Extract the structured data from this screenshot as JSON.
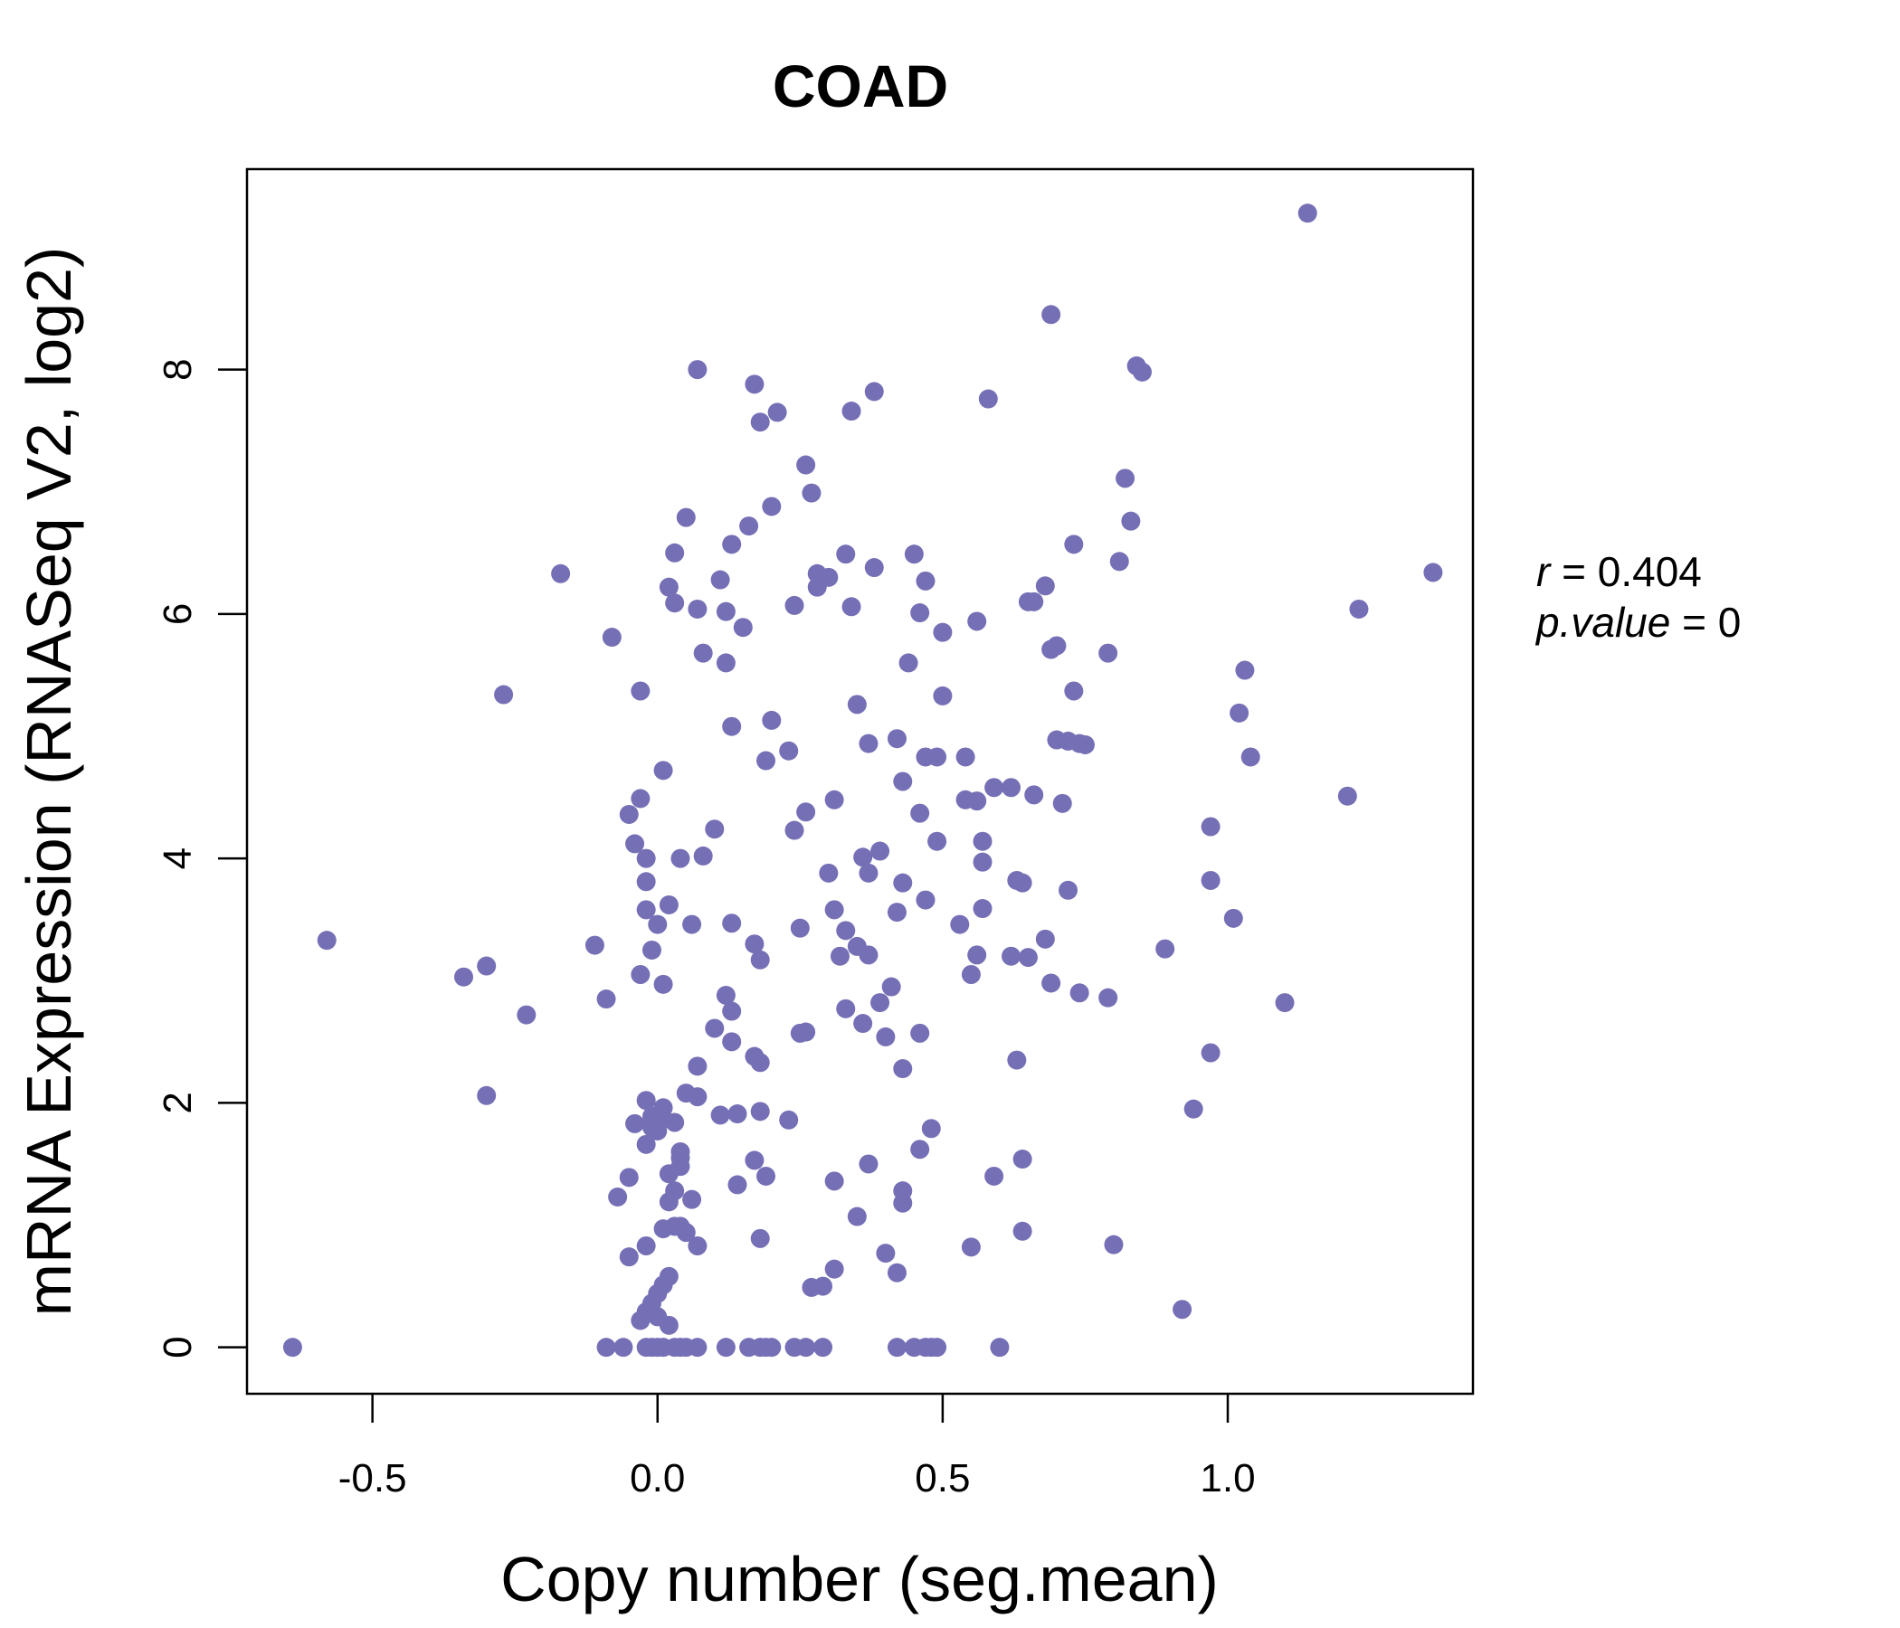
{
  "colors": {
    "point": "#7570b6",
    "axis": "#000000",
    "background": "#ffffff"
  },
  "chart_data": {
    "type": "scatter",
    "title": "COAD",
    "xlabel": "Copy number (seg.mean)",
    "ylabel": "mRNA Expression (RNASeq V2, log2)",
    "xlim": [
      -0.72,
      1.43
    ],
    "ylim": [
      -0.38,
      9.64
    ],
    "xticks": [
      -0.5,
      0.0,
      0.5,
      1.0
    ],
    "xtick_labels": [
      "-0.5",
      "0.0",
      "0.5",
      "1.0"
    ],
    "yticks": [
      0,
      2,
      4,
      6,
      8
    ],
    "ytick_labels": [
      "0",
      "2",
      "4",
      "6",
      "8"
    ],
    "grid": false,
    "stats": {
      "r_label": "r",
      "r_value": "0.404",
      "p_label": "p.value",
      "p_value": "0"
    },
    "points": [
      [
        -0.64,
        0.0
      ],
      [
        -0.58,
        3.33
      ],
      [
        -0.34,
        3.03
      ],
      [
        -0.3,
        3.12
      ],
      [
        -0.3,
        2.06
      ],
      [
        -0.27,
        5.34
      ],
      [
        -0.23,
        2.72
      ],
      [
        -0.17,
        6.33
      ],
      [
        -0.11,
        3.29
      ],
      [
        -0.09,
        2.85
      ],
      [
        -0.09,
        0.0
      ],
      [
        -0.08,
        5.81
      ],
      [
        -0.07,
        1.23
      ],
      [
        -0.06,
        0.0
      ],
      [
        -0.05,
        1.39
      ],
      [
        -0.05,
        0.74
      ],
      [
        -0.05,
        4.36
      ],
      [
        -0.04,
        4.12
      ],
      [
        -0.04,
        1.83
      ],
      [
        -0.03,
        0.22
      ],
      [
        -0.03,
        4.49
      ],
      [
        -0.03,
        3.05
      ],
      [
        -0.03,
        5.37
      ],
      [
        -0.02,
        0.0
      ],
      [
        -0.02,
        4.0
      ],
      [
        -0.02,
        1.66
      ],
      [
        -0.02,
        3.81
      ],
      [
        -0.02,
        3.58
      ],
      [
        -0.02,
        2.02
      ],
      [
        -0.02,
        0.83
      ],
      [
        -0.02,
        0.29
      ],
      [
        -0.01,
        1.89
      ],
      [
        -0.01,
        0.36
      ],
      [
        -0.01,
        0.0
      ],
      [
        -0.01,
        3.25
      ],
      [
        -0.01,
        1.8
      ],
      [
        0.0,
        1.77
      ],
      [
        0.0,
        3.46
      ],
      [
        0.0,
        0.44
      ],
      [
        0.0,
        0.25
      ],
      [
        0.0,
        0.0
      ],
      [
        0.01,
        1.96
      ],
      [
        0.01,
        4.72
      ],
      [
        0.01,
        0.51
      ],
      [
        0.01,
        2.97
      ],
      [
        0.01,
        0.97
      ],
      [
        0.01,
        1.87
      ],
      [
        0.01,
        0.0
      ],
      [
        0.02,
        3.62
      ],
      [
        0.02,
        6.22
      ],
      [
        0.02,
        1.19
      ],
      [
        0.02,
        0.18
      ],
      [
        0.02,
        1.42
      ],
      [
        0.02,
        0.58
      ],
      [
        0.03,
        1.84
      ],
      [
        0.03,
        0.0
      ],
      [
        0.03,
        6.5
      ],
      [
        0.03,
        6.09
      ],
      [
        0.03,
        0.99
      ],
      [
        0.03,
        1.28
      ],
      [
        0.04,
        1.6
      ],
      [
        0.04,
        4.0
      ],
      [
        0.04,
        1.48
      ],
      [
        0.04,
        0.0
      ],
      [
        0.04,
        0.99
      ],
      [
        0.04,
        1.55
      ],
      [
        0.05,
        0.0
      ],
      [
        0.05,
        6.79
      ],
      [
        0.05,
        2.08
      ],
      [
        0.05,
        0.94
      ],
      [
        0.06,
        1.21
      ],
      [
        0.06,
        3.46
      ],
      [
        0.07,
        8.0
      ],
      [
        0.07,
        0.83
      ],
      [
        0.07,
        2.3
      ],
      [
        0.07,
        6.04
      ],
      [
        0.07,
        0.0
      ],
      [
        0.07,
        2.05
      ],
      [
        0.08,
        5.68
      ],
      [
        0.08,
        4.02
      ],
      [
        0.1,
        2.61
      ],
      [
        0.1,
        4.24
      ],
      [
        0.11,
        6.28
      ],
      [
        0.11,
        1.9
      ],
      [
        0.12,
        0.0
      ],
      [
        0.12,
        5.6
      ],
      [
        0.12,
        6.02
      ],
      [
        0.12,
        2.88
      ],
      [
        0.13,
        2.75
      ],
      [
        0.13,
        6.57
      ],
      [
        0.13,
        5.08
      ],
      [
        0.13,
        3.47
      ],
      [
        0.13,
        2.5
      ],
      [
        0.14,
        1.33
      ],
      [
        0.14,
        1.91
      ],
      [
        0.15,
        5.89
      ],
      [
        0.16,
        6.72
      ],
      [
        0.16,
        0.0
      ],
      [
        0.17,
        7.88
      ],
      [
        0.17,
        1.53
      ],
      [
        0.17,
        3.3
      ],
      [
        0.17,
        2.38
      ],
      [
        0.18,
        7.57
      ],
      [
        0.18,
        3.17
      ],
      [
        0.18,
        0.89
      ],
      [
        0.18,
        1.93
      ],
      [
        0.18,
        0.0
      ],
      [
        0.18,
        2.33
      ],
      [
        0.19,
        4.8
      ],
      [
        0.19,
        0.0
      ],
      [
        0.19,
        1.4
      ],
      [
        0.2,
        6.88
      ],
      [
        0.2,
        0.0
      ],
      [
        0.2,
        5.13
      ],
      [
        0.21,
        7.65
      ],
      [
        0.23,
        4.88
      ],
      [
        0.23,
        1.86
      ],
      [
        0.24,
        6.07
      ],
      [
        0.24,
        0.0
      ],
      [
        0.24,
        4.23
      ],
      [
        0.25,
        2.57
      ],
      [
        0.25,
        3.43
      ],
      [
        0.26,
        4.38
      ],
      [
        0.26,
        7.22
      ],
      [
        0.26,
        2.58
      ],
      [
        0.26,
        0.0
      ],
      [
        0.27,
        6.99
      ],
      [
        0.27,
        0.49
      ],
      [
        0.28,
        6.22
      ],
      [
        0.28,
        6.33
      ],
      [
        0.29,
        0.0
      ],
      [
        0.29,
        0.5
      ],
      [
        0.3,
        6.3
      ],
      [
        0.3,
        3.88
      ],
      [
        0.31,
        4.48
      ],
      [
        0.31,
        3.58
      ],
      [
        0.31,
        1.36
      ],
      [
        0.31,
        0.64
      ],
      [
        0.32,
        3.2
      ],
      [
        0.33,
        6.49
      ],
      [
        0.33,
        3.41
      ],
      [
        0.33,
        2.77
      ],
      [
        0.34,
        7.66
      ],
      [
        0.34,
        6.06
      ],
      [
        0.35,
        1.07
      ],
      [
        0.35,
        5.26
      ],
      [
        0.35,
        3.28
      ],
      [
        0.36,
        4.01
      ],
      [
        0.36,
        2.65
      ],
      [
        0.37,
        4.94
      ],
      [
        0.37,
        3.88
      ],
      [
        0.37,
        3.21
      ],
      [
        0.37,
        1.5
      ],
      [
        0.38,
        6.38
      ],
      [
        0.38,
        7.82
      ],
      [
        0.39,
        2.82
      ],
      [
        0.39,
        4.06
      ],
      [
        0.4,
        2.54
      ],
      [
        0.4,
        0.77
      ],
      [
        0.41,
        2.95
      ],
      [
        0.42,
        4.98
      ],
      [
        0.42,
        3.56
      ],
      [
        0.42,
        0.0
      ],
      [
        0.42,
        0.61
      ],
      [
        0.43,
        1.28
      ],
      [
        0.43,
        2.28
      ],
      [
        0.43,
        4.63
      ],
      [
        0.43,
        1.18
      ],
      [
        0.43,
        3.8
      ],
      [
        0.44,
        5.6
      ],
      [
        0.45,
        6.49
      ],
      [
        0.45,
        0.0
      ],
      [
        0.46,
        1.62
      ],
      [
        0.46,
        2.57
      ],
      [
        0.46,
        4.37
      ],
      [
        0.46,
        6.01
      ],
      [
        0.47,
        4.83
      ],
      [
        0.47,
        0.0
      ],
      [
        0.47,
        6.27
      ],
      [
        0.47,
        3.66
      ],
      [
        0.48,
        0.0
      ],
      [
        0.48,
        1.79
      ],
      [
        0.49,
        4.14
      ],
      [
        0.49,
        4.83
      ],
      [
        0.49,
        0.0
      ],
      [
        0.5,
        5.33
      ],
      [
        0.5,
        5.85
      ],
      [
        0.53,
        3.46
      ],
      [
        0.54,
        4.48
      ],
      [
        0.54,
        4.83
      ],
      [
        0.55,
        3.05
      ],
      [
        0.55,
        0.82
      ],
      [
        0.56,
        4.47
      ],
      [
        0.56,
        3.21
      ],
      [
        0.56,
        5.94
      ],
      [
        0.57,
        3.97
      ],
      [
        0.57,
        4.14
      ],
      [
        0.57,
        3.59
      ],
      [
        0.58,
        7.76
      ],
      [
        0.59,
        1.4
      ],
      [
        0.59,
        4.58
      ],
      [
        0.6,
        0.0
      ],
      [
        0.62,
        4.58
      ],
      [
        0.62,
        3.2
      ],
      [
        0.63,
        3.82
      ],
      [
        0.63,
        2.35
      ],
      [
        0.64,
        1.54
      ],
      [
        0.64,
        3.8
      ],
      [
        0.64,
        0.95
      ],
      [
        0.65,
        6.1
      ],
      [
        0.65,
        3.19
      ],
      [
        0.66,
        6.1
      ],
      [
        0.66,
        4.52
      ],
      [
        0.68,
        6.23
      ],
      [
        0.68,
        3.34
      ],
      [
        0.69,
        8.45
      ],
      [
        0.69,
        5.71
      ],
      [
        0.69,
        2.98
      ],
      [
        0.7,
        5.74
      ],
      [
        0.7,
        4.97
      ],
      [
        0.71,
        4.45
      ],
      [
        0.72,
        3.74
      ],
      [
        0.72,
        4.96
      ],
      [
        0.73,
        5.37
      ],
      [
        0.73,
        6.57
      ],
      [
        0.74,
        2.9
      ],
      [
        0.74,
        4.94
      ],
      [
        0.75,
        4.93
      ],
      [
        0.79,
        2.86
      ],
      [
        0.79,
        5.68
      ],
      [
        0.8,
        0.84
      ],
      [
        0.81,
        6.43
      ],
      [
        0.82,
        7.11
      ],
      [
        0.83,
        6.76
      ],
      [
        0.84,
        8.03
      ],
      [
        0.85,
        7.98
      ],
      [
        0.89,
        3.26
      ],
      [
        0.92,
        0.31
      ],
      [
        0.94,
        1.95
      ],
      [
        0.97,
        2.41
      ],
      [
        0.97,
        3.82
      ],
      [
        0.97,
        4.26
      ],
      [
        1.01,
        3.51
      ],
      [
        1.02,
        5.19
      ],
      [
        1.03,
        5.54
      ],
      [
        1.04,
        4.83
      ],
      [
        1.1,
        2.82
      ],
      [
        1.14,
        9.28
      ],
      [
        1.21,
        4.51
      ],
      [
        1.23,
        6.04
      ],
      [
        1.36,
        6.34
      ]
    ]
  }
}
